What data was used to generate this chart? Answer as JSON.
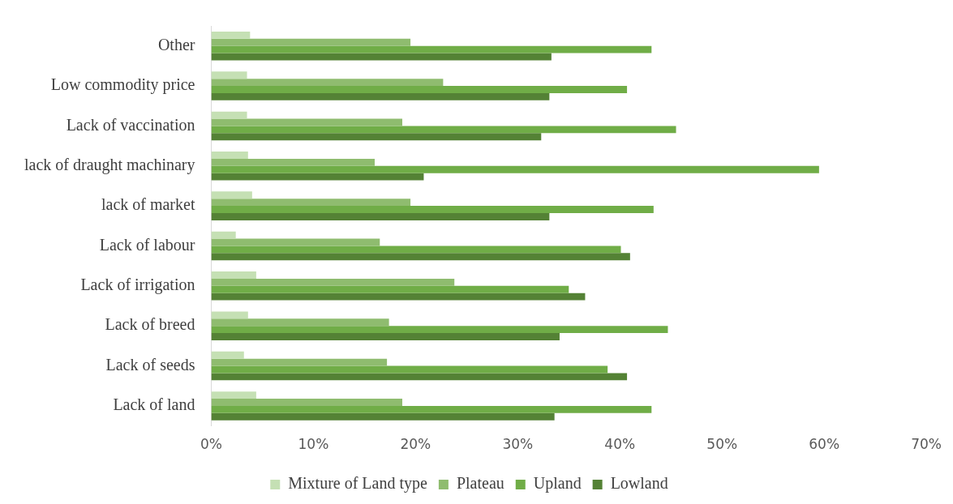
{
  "chart_data": {
    "type": "bar",
    "orientation": "horizontal",
    "categories": [
      "Other",
      "Low commodity price",
      "Lack of vaccination",
      "lack of draught machinary",
      "lack of market",
      "Lack of labour",
      "Lack of irrigation",
      "Lack of breed",
      "Lack of seeds",
      "Lack of land"
    ],
    "series": [
      {
        "name": "Mixture of Land type",
        "color": "#c5e0b4",
        "values": [
          3.8,
          3.5,
          3.5,
          3.6,
          4.0,
          2.4,
          4.4,
          3.6,
          3.2,
          4.4
        ]
      },
      {
        "name": "Plateau",
        "color": "#8fbc6f",
        "values": [
          19.5,
          22.7,
          18.7,
          16.0,
          19.5,
          16.5,
          23.8,
          17.4,
          17.2,
          18.7
        ]
      },
      {
        "name": "Upland",
        "color": "#70ad47",
        "values": [
          43.1,
          40.7,
          45.5,
          59.5,
          43.3,
          40.1,
          35.0,
          44.7,
          38.8,
          43.1
        ]
      },
      {
        "name": "Lowland",
        "color": "#548235",
        "values": [
          33.3,
          33.1,
          32.3,
          20.8,
          33.1,
          41.0,
          36.6,
          34.1,
          40.7,
          33.6
        ]
      }
    ],
    "xlim": [
      0,
      70
    ],
    "xticks": [
      {
        "value": 0,
        "label": "0%"
      },
      {
        "value": 10,
        "label": "10%"
      },
      {
        "value": 20,
        "label": "20%"
      },
      {
        "value": 30,
        "label": "30%"
      },
      {
        "value": 40,
        "label": "40%"
      },
      {
        "value": 50,
        "label": "50%"
      },
      {
        "value": 60,
        "label": "60%"
      },
      {
        "value": 70,
        "label": "70%"
      }
    ],
    "grid": false,
    "legend": "bottom"
  }
}
